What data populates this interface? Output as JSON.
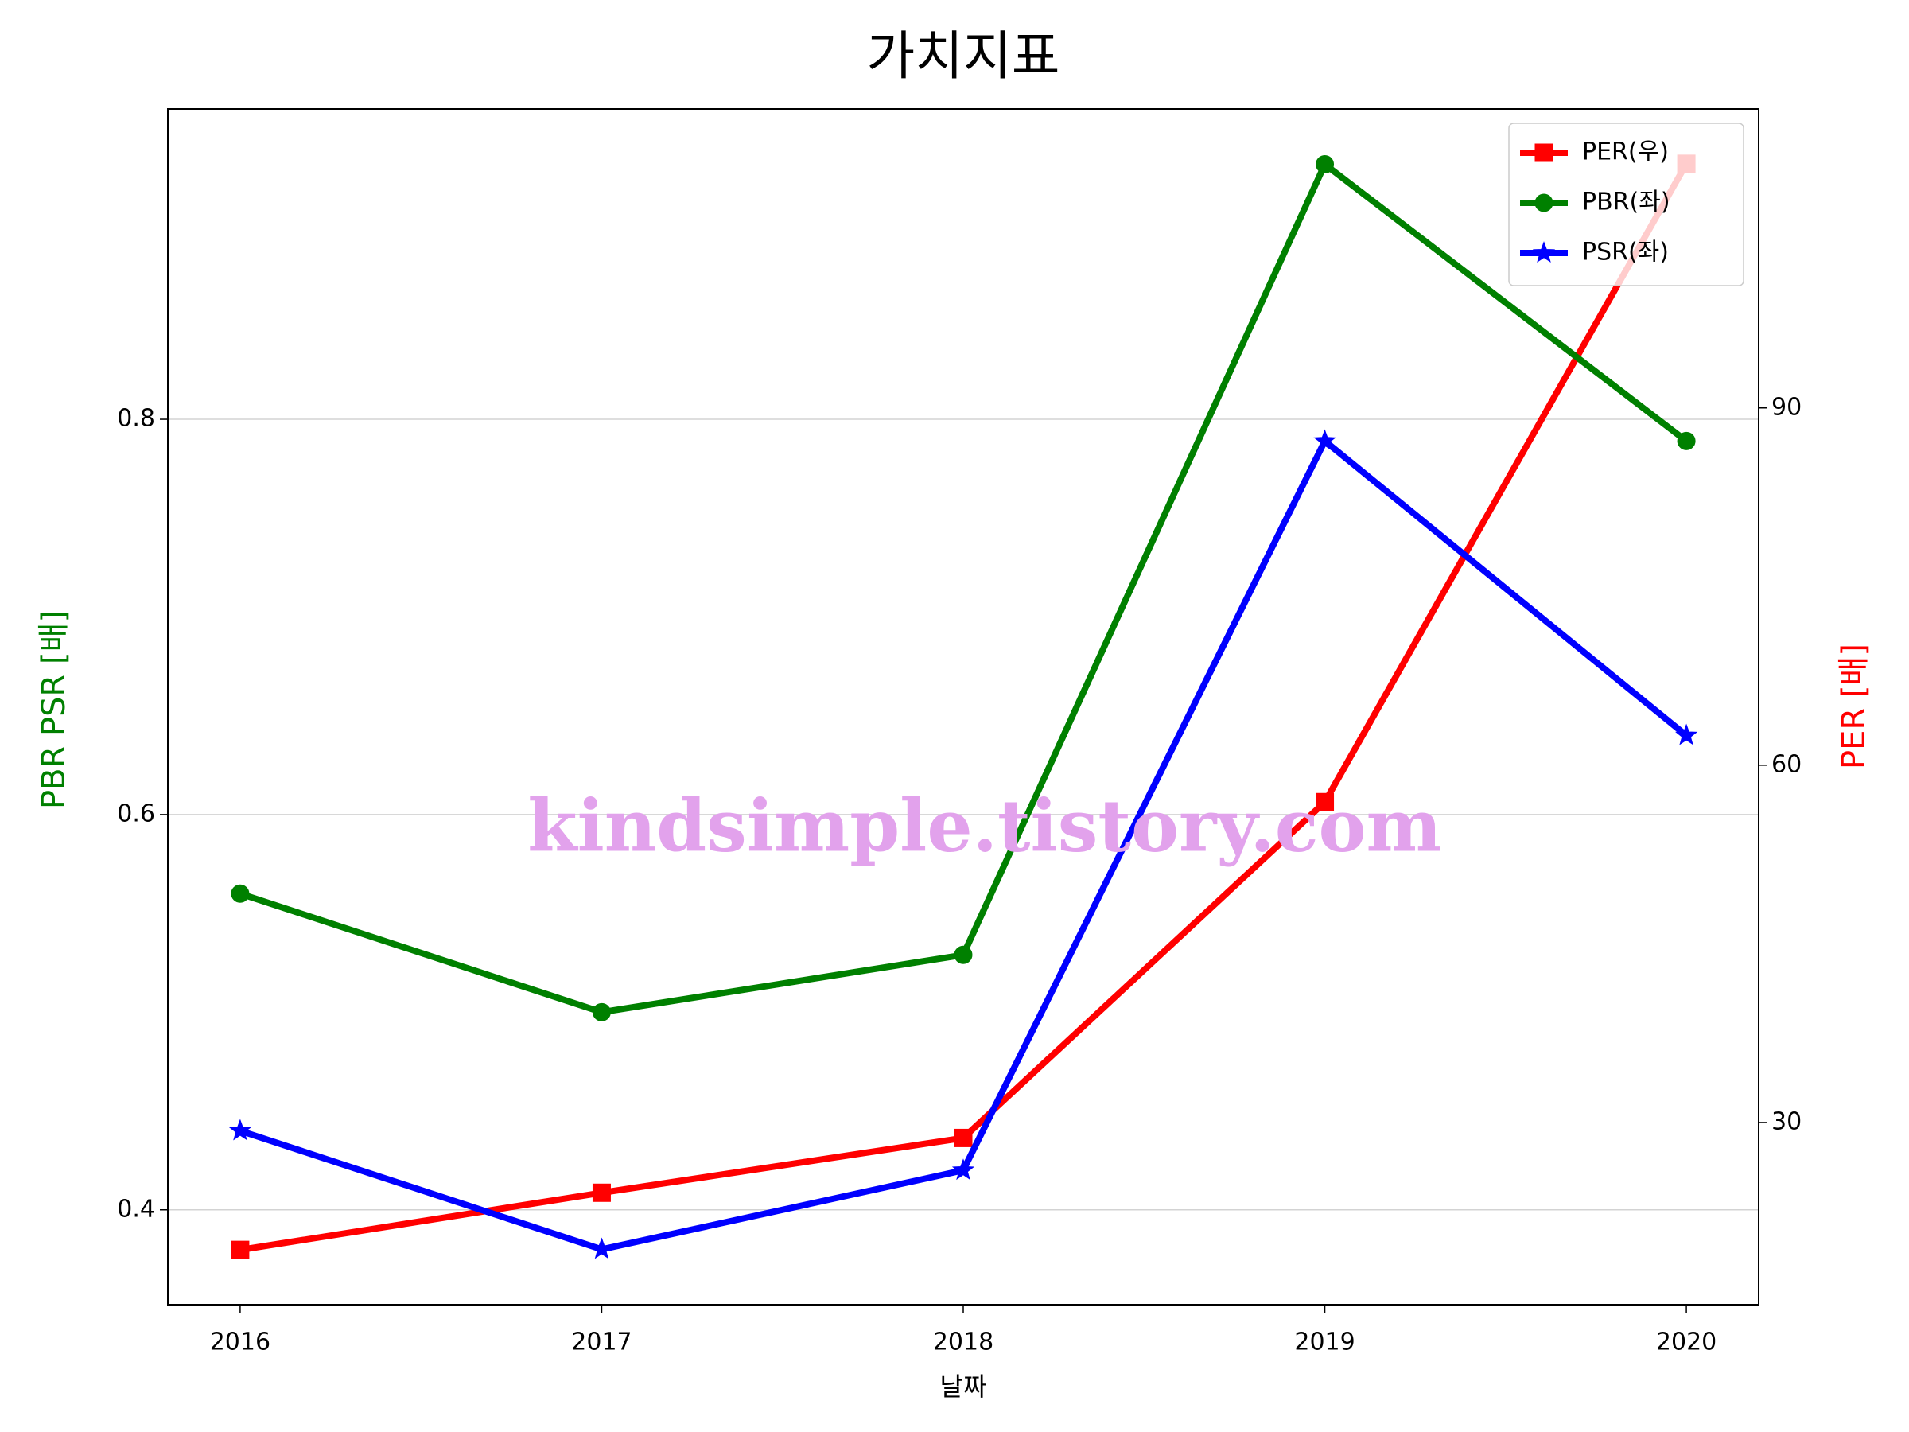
{
  "chart_data": {
    "type": "line",
    "title": "가치지표",
    "x_label": "날짜",
    "y_label": "PBR PSR [배]",
    "y2_label": "PER [배]",
    "annotation": "kindsimple.tistory.com",
    "x": [
      2016,
      2017,
      2018,
      2019,
      2020
    ],
    "xlim": [
      2015.8,
      2020.2
    ],
    "xticks": [
      2016,
      2017,
      2018,
      2019,
      2020
    ],
    "ylim": [
      0.352,
      0.957
    ],
    "yticks": [
      0.4,
      0.6,
      0.8
    ],
    "y2lim": [
      14.7,
      115.1
    ],
    "y2ticks": [
      30,
      60,
      90
    ],
    "grid": true,
    "legend": "upper right",
    "series": [
      {
        "name": "PER(우)",
        "color": "#ff0000",
        "marker": "square",
        "axis": "y2",
        "values": [
          19.3,
          24.1,
          28.7,
          56.9,
          110.5
        ]
      },
      {
        "name": "PBR(좌)",
        "color": "#008000",
        "marker": "circle",
        "values": [
          0.56,
          0.5,
          0.529,
          0.929,
          0.789
        ]
      },
      {
        "name": "PSR(좌)",
        "color": "#0000ff",
        "marker": "star",
        "values": [
          0.44,
          0.38,
          0.42,
          0.789,
          0.64
        ]
      }
    ]
  }
}
